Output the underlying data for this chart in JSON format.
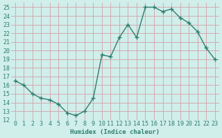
{
  "x": [
    0,
    1,
    2,
    3,
    4,
    5,
    6,
    7,
    8,
    9,
    10,
    11,
    12,
    13,
    14,
    15,
    16,
    17,
    18,
    19,
    20,
    21,
    22,
    23
  ],
  "y": [
    16.5,
    16.0,
    15.0,
    14.5,
    14.3,
    13.8,
    12.8,
    12.5,
    13.0,
    14.5,
    19.5,
    19.3,
    21.5,
    23.0,
    21.5,
    25.0,
    25.0,
    24.5,
    24.8,
    23.8,
    23.2,
    22.2,
    20.3,
    19.0
  ],
  "xlabel": "Humidex (Indice chaleur)",
  "xlim": [
    -0.5,
    23.5
  ],
  "ylim": [
    12,
    25.5
  ],
  "yticks": [
    12,
    13,
    14,
    15,
    16,
    17,
    18,
    19,
    20,
    21,
    22,
    23,
    24,
    25
  ],
  "xticks": [
    0,
    1,
    2,
    3,
    4,
    5,
    6,
    7,
    8,
    9,
    10,
    11,
    12,
    13,
    14,
    15,
    16,
    17,
    18,
    19,
    20,
    21,
    22,
    23
  ],
  "line_color": "#2e7d6e",
  "marker": "+",
  "marker_size": 4.0,
  "bg_color": "#d0eeea",
  "grid_color": "#d4a0a8",
  "axis_fontsize": 6.5,
  "tick_fontsize": 6,
  "line_width": 1.0
}
